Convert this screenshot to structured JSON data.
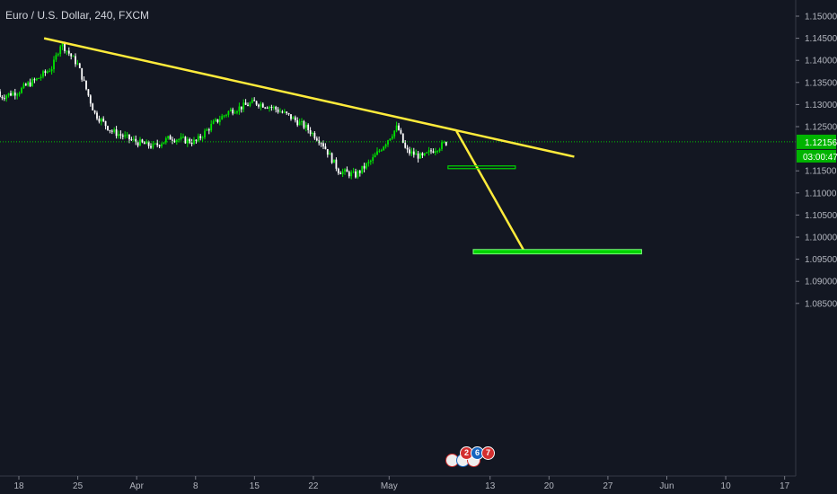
{
  "header": {
    "title": "Euro / U.S. Dollar, 240, FXCM"
  },
  "price_axis": {
    "ticks": [
      "1.15000",
      "1.14500",
      "1.14000",
      "1.13500",
      "1.13000",
      "1.12500",
      "1.11500",
      "1.11000",
      "1.10500",
      "1.10000",
      "1.09500",
      "1.09000",
      "1.08500"
    ],
    "current_price": "1.12156",
    "countdown": "03:00:47"
  },
  "time_axis": {
    "ticks": [
      "18",
      "25",
      "Apr",
      "8",
      "15",
      "22",
      "May",
      "13",
      "20",
      "27",
      "Jun",
      "10",
      "17"
    ]
  },
  "event_badges": [
    "2",
    "6",
    "7"
  ],
  "colors": {
    "background": "#131722",
    "up_candle": "#00e600",
    "down_candle": "#ffffff",
    "trendline": "#ffeb3b",
    "zone": "#00d400",
    "price_line": "#00c800"
  },
  "chart_data": {
    "type": "candlestick",
    "title": "Euro / U.S. Dollar, 240, FXCM",
    "ylim": [
      1.0825,
      1.1525
    ],
    "grid": false,
    "current_price": 1.12156,
    "x_ticks": [
      "18",
      "25",
      "Apr",
      "8",
      "15",
      "22",
      "May",
      "13",
      "20",
      "27",
      "Jun",
      "10",
      "17"
    ],
    "price_path": [
      {
        "date": "2019-03-18",
        "close": 1.133
      },
      {
        "date": "2019-03-19",
        "close": 1.1345
      },
      {
        "date": "2019-03-20",
        "close": 1.1355
      },
      {
        "date": "2019-03-21",
        "close": 1.137
      },
      {
        "date": "2019-03-22",
        "close": 1.1385
      },
      {
        "date": "2019-03-23",
        "close": 1.144
      },
      {
        "date": "2019-03-25",
        "close": 1.139
      },
      {
        "date": "2019-03-27",
        "close": 1.128
      },
      {
        "date": "2019-03-29",
        "close": 1.124
      },
      {
        "date": "2019-04-01",
        "close": 1.1215
      },
      {
        "date": "2019-04-03",
        "close": 1.1205
      },
      {
        "date": "2019-04-05",
        "close": 1.1225
      },
      {
        "date": "2019-04-08",
        "close": 1.1215
      },
      {
        "date": "2019-04-10",
        "close": 1.1255
      },
      {
        "date": "2019-04-12",
        "close": 1.1285
      },
      {
        "date": "2019-04-15",
        "close": 1.1305
      },
      {
        "date": "2019-04-17",
        "close": 1.1295
      },
      {
        "date": "2019-04-19",
        "close": 1.1275
      },
      {
        "date": "2019-04-21",
        "close": 1.125
      },
      {
        "date": "2019-04-23",
        "close": 1.1215
      },
      {
        "date": "2019-04-25",
        "close": 1.115
      },
      {
        "date": "2019-04-27",
        "close": 1.114
      },
      {
        "date": "2019-04-29",
        "close": 1.1175
      },
      {
        "date": "2019-05-01",
        "close": 1.1225
      },
      {
        "date": "2019-05-02",
        "close": 1.125
      },
      {
        "date": "2019-05-03",
        "close": 1.1195
      },
      {
        "date": "2019-05-05",
        "close": 1.118
      },
      {
        "date": "2019-05-06",
        "close": 1.1195
      },
      {
        "date": "2019-05-08",
        "close": 1.1216
      }
    ],
    "annotations": [
      {
        "type": "trendline",
        "from": {
          "date": "2019-03-21",
          "price": 1.145
        },
        "to": {
          "date": "2019-05-23",
          "price": 1.1182
        }
      },
      {
        "type": "projection",
        "from": {
          "date": "2019-05-09",
          "price": 1.124
        },
        "to": {
          "date": "2019-05-17",
          "price": 1.097
        }
      },
      {
        "type": "zone",
        "from_date": "2019-05-08",
        "to_date": "2019-05-16",
        "price": 1.1158
      },
      {
        "type": "zone",
        "from_date": "2019-05-11",
        "to_date": "2019-05-31",
        "price_low": 1.0962,
        "price_high": 1.0972
      }
    ]
  }
}
